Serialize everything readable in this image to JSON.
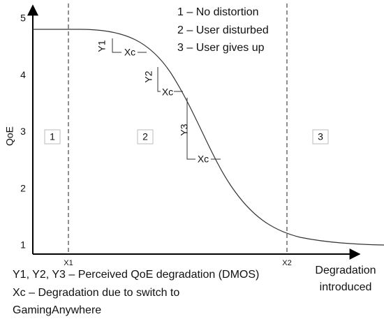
{
  "y_axis": {
    "label": "QoE",
    "ticks": [
      1,
      2,
      3,
      4,
      5
    ]
  },
  "x_axis": {
    "label_lines": [
      "Degradation",
      "introduced"
    ],
    "markers": [
      "X1",
      "X2"
    ]
  },
  "regions": [
    "1",
    "2",
    "3"
  ],
  "legend": [
    "1 – No distortion",
    "2 – User disturbed",
    "3 – User gives up"
  ],
  "annotations": {
    "y_labels": [
      "Y1",
      "Y2",
      "Y3"
    ],
    "xc_labels": [
      "Xc",
      "Xc",
      "Xc"
    ]
  },
  "footnote": [
    "Y1, Y2, Y3 – Perceived QoE degradation (DMOS)",
    "Xc – Degradation due to switch to",
    "GamingAnywhere"
  ]
}
